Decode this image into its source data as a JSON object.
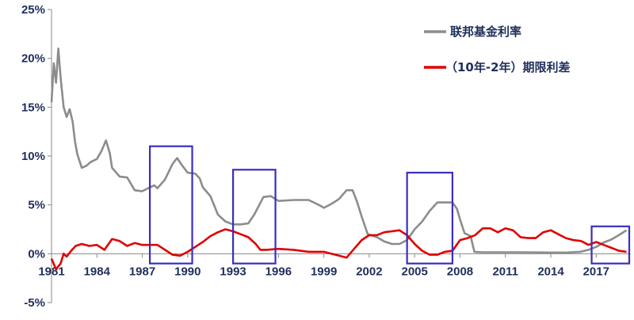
{
  "chart_data": {
    "type": "line",
    "xlim": [
      1981,
      2019.5
    ],
    "ylim": [
      -5,
      25
    ],
    "grid": false,
    "legend_position": "top-right",
    "x_ticks": [
      1981,
      1984,
      1987,
      1990,
      1993,
      1996,
      1999,
      2002,
      2005,
      2008,
      2011,
      2014,
      2017
    ],
    "x_tick_labels": [
      "1981",
      "1984",
      "1987",
      "1990",
      "1993",
      "1996",
      "1999",
      "2002",
      "2005",
      "2008",
      "2011",
      "2014",
      "2017"
    ],
    "y_ticks": [
      -5,
      0,
      5,
      10,
      15,
      20,
      25
    ],
    "y_tick_labels": [
      "-5%",
      "0%",
      "5%",
      "10%",
      "15%",
      "20%",
      "25%"
    ],
    "series": [
      {
        "name": "联邦基金利率",
        "color": "#8c8c8c",
        "points": [
          [
            1981.0,
            15.5
          ],
          [
            1981.15,
            19.5
          ],
          [
            1981.3,
            17.5
          ],
          [
            1981.45,
            21.0
          ],
          [
            1981.6,
            18.0
          ],
          [
            1981.8,
            15.0
          ],
          [
            1982.0,
            14.0
          ],
          [
            1982.2,
            14.8
          ],
          [
            1982.4,
            13.5
          ],
          [
            1982.55,
            11.5
          ],
          [
            1982.7,
            10.2
          ],
          [
            1982.85,
            9.5
          ],
          [
            1983.0,
            8.8
          ],
          [
            1983.3,
            9.0
          ],
          [
            1983.6,
            9.4
          ],
          [
            1984.0,
            9.7
          ],
          [
            1984.3,
            10.5
          ],
          [
            1984.6,
            11.6
          ],
          [
            1984.85,
            10.3
          ],
          [
            1985.0,
            8.8
          ],
          [
            1985.5,
            7.9
          ],
          [
            1986.0,
            7.8
          ],
          [
            1986.5,
            6.5
          ],
          [
            1987.0,
            6.4
          ],
          [
            1987.5,
            6.8
          ],
          [
            1987.8,
            7.0
          ],
          [
            1988.0,
            6.7
          ],
          [
            1988.5,
            7.6
          ],
          [
            1989.0,
            9.2
          ],
          [
            1989.3,
            9.8
          ],
          [
            1989.6,
            9.1
          ],
          [
            1990.0,
            8.3
          ],
          [
            1990.5,
            8.2
          ],
          [
            1990.8,
            7.7
          ],
          [
            1991.0,
            6.8
          ],
          [
            1991.5,
            5.9
          ],
          [
            1992.0,
            4.0
          ],
          [
            1992.5,
            3.3
          ],
          [
            1993.0,
            3.0
          ],
          [
            1993.5,
            3.0
          ],
          [
            1994.0,
            3.1
          ],
          [
            1994.4,
            4.0
          ],
          [
            1994.8,
            5.2
          ],
          [
            1995.0,
            5.8
          ],
          [
            1995.5,
            5.9
          ],
          [
            1996.0,
            5.4
          ],
          [
            1997.0,
            5.5
          ],
          [
            1998.0,
            5.5
          ],
          [
            1998.8,
            4.9
          ],
          [
            1999.0,
            4.7
          ],
          [
            1999.5,
            5.1
          ],
          [
            2000.0,
            5.6
          ],
          [
            2000.5,
            6.5
          ],
          [
            2000.9,
            6.5
          ],
          [
            2001.2,
            5.3
          ],
          [
            2001.5,
            3.8
          ],
          [
            2001.9,
            2.0
          ],
          [
            2002.5,
            1.7
          ],
          [
            2003.0,
            1.25
          ],
          [
            2003.5,
            1.0
          ],
          [
            2004.0,
            1.0
          ],
          [
            2004.5,
            1.4
          ],
          [
            2005.0,
            2.5
          ],
          [
            2005.5,
            3.3
          ],
          [
            2006.0,
            4.4
          ],
          [
            2006.5,
            5.25
          ],
          [
            2007.0,
            5.25
          ],
          [
            2007.5,
            5.25
          ],
          [
            2007.8,
            4.6
          ],
          [
            2008.0,
            3.5
          ],
          [
            2008.3,
            2.1
          ],
          [
            2008.7,
            1.8
          ],
          [
            2008.95,
            0.2
          ],
          [
            2009.5,
            0.15
          ],
          [
            2012.0,
            0.15
          ],
          [
            2015.0,
            0.12
          ],
          [
            2015.95,
            0.2
          ],
          [
            2016.5,
            0.4
          ],
          [
            2017.0,
            0.7
          ],
          [
            2017.5,
            1.15
          ],
          [
            2018.0,
            1.45
          ],
          [
            2018.5,
            1.9
          ],
          [
            2019.0,
            2.4
          ]
        ]
      },
      {
        "name": "（10年-2年）期限利差",
        "color": "#e00000",
        "points": [
          [
            1981.0,
            -0.5
          ],
          [
            1981.3,
            -1.6
          ],
          [
            1981.6,
            -1.0
          ],
          [
            1981.8,
            0.0
          ],
          [
            1982.0,
            -0.3
          ],
          [
            1982.3,
            0.3
          ],
          [
            1982.6,
            0.8
          ],
          [
            1983.0,
            1.0
          ],
          [
            1983.5,
            0.8
          ],
          [
            1984.0,
            0.9
          ],
          [
            1984.5,
            0.4
          ],
          [
            1985.0,
            1.5
          ],
          [
            1985.5,
            1.3
          ],
          [
            1986.0,
            0.8
          ],
          [
            1986.5,
            1.1
          ],
          [
            1987.0,
            0.9
          ],
          [
            1987.5,
            0.9
          ],
          [
            1988.0,
            0.9
          ],
          [
            1988.5,
            0.4
          ],
          [
            1989.0,
            -0.1
          ],
          [
            1989.5,
            -0.2
          ],
          [
            1990.0,
            0.2
          ],
          [
            1990.5,
            0.7
          ],
          [
            1991.0,
            1.2
          ],
          [
            1991.5,
            1.8
          ],
          [
            1992.0,
            2.2
          ],
          [
            1992.5,
            2.5
          ],
          [
            1993.0,
            2.3
          ],
          [
            1993.5,
            2.0
          ],
          [
            1994.0,
            1.7
          ],
          [
            1994.5,
            1.0
          ],
          [
            1994.8,
            0.4
          ],
          [
            1995.2,
            0.4
          ],
          [
            1996.0,
            0.5
          ],
          [
            1997.0,
            0.4
          ],
          [
            1998.0,
            0.2
          ],
          [
            1999.0,
            0.2
          ],
          [
            2000.0,
            -0.2
          ],
          [
            2000.5,
            -0.4
          ],
          [
            2001.0,
            0.5
          ],
          [
            2001.5,
            1.4
          ],
          [
            2002.0,
            1.9
          ],
          [
            2002.5,
            1.9
          ],
          [
            2003.0,
            2.2
          ],
          [
            2003.5,
            2.3
          ],
          [
            2004.0,
            2.4
          ],
          [
            2004.5,
            1.9
          ],
          [
            2005.0,
            1.0
          ],
          [
            2005.5,
            0.3
          ],
          [
            2006.0,
            -0.1
          ],
          [
            2006.5,
            -0.1
          ],
          [
            2007.0,
            0.2
          ],
          [
            2007.5,
            0.3
          ],
          [
            2008.0,
            1.4
          ],
          [
            2008.5,
            1.6
          ],
          [
            2009.0,
            1.9
          ],
          [
            2009.5,
            2.6
          ],
          [
            2010.0,
            2.6
          ],
          [
            2010.5,
            2.2
          ],
          [
            2011.0,
            2.6
          ],
          [
            2011.5,
            2.4
          ],
          [
            2012.0,
            1.7
          ],
          [
            2012.5,
            1.6
          ],
          [
            2013.0,
            1.6
          ],
          [
            2013.5,
            2.2
          ],
          [
            2014.0,
            2.4
          ],
          [
            2014.5,
            2.0
          ],
          [
            2015.0,
            1.6
          ],
          [
            2015.5,
            1.4
          ],
          [
            2016.0,
            1.3
          ],
          [
            2016.5,
            0.9
          ],
          [
            2017.0,
            1.2
          ],
          [
            2017.5,
            0.9
          ],
          [
            2018.0,
            0.6
          ],
          [
            2018.5,
            0.3
          ],
          [
            2019.0,
            0.2
          ]
        ]
      }
    ],
    "highlight_boxes": [
      {
        "x": [
          1987.5,
          1990.3
        ],
        "y": [
          -1.0,
          11.0
        ],
        "color": "#3a2ec0"
      },
      {
        "x": [
          1993.0,
          1995.8
        ],
        "y": [
          -1.0,
          8.6
        ],
        "color": "#3a2ec0"
      },
      {
        "x": [
          2004.5,
          2007.5
        ],
        "y": [
          -1.0,
          8.3
        ],
        "color": "#3a2ec0"
      },
      {
        "x": [
          2016.7,
          2019.7
        ],
        "y": [
          -1.0,
          2.8
        ],
        "color": "#3a2ec0"
      }
    ]
  }
}
